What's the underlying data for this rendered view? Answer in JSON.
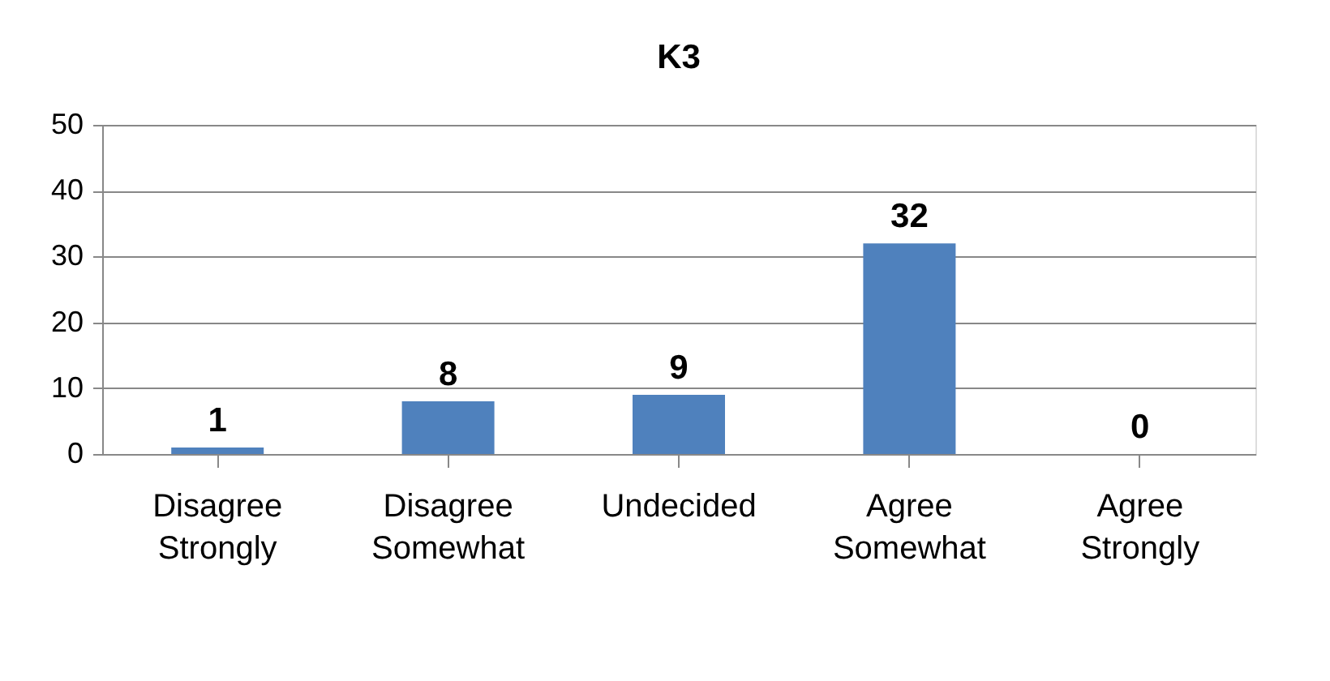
{
  "chart_data": {
    "type": "bar",
    "title": "K3",
    "categories": [
      "Disagree Strongly",
      "Disagree Somewhat",
      "Undecided",
      "Agree Somewhat",
      "Agree Strongly"
    ],
    "values": [
      1,
      8,
      9,
      32,
      0
    ],
    "color": "#4f81bd",
    "ylim": [
      0,
      50
    ],
    "yticks": [
      0,
      10,
      20,
      30,
      40,
      50
    ],
    "grid": "y",
    "data_labels": true
  }
}
